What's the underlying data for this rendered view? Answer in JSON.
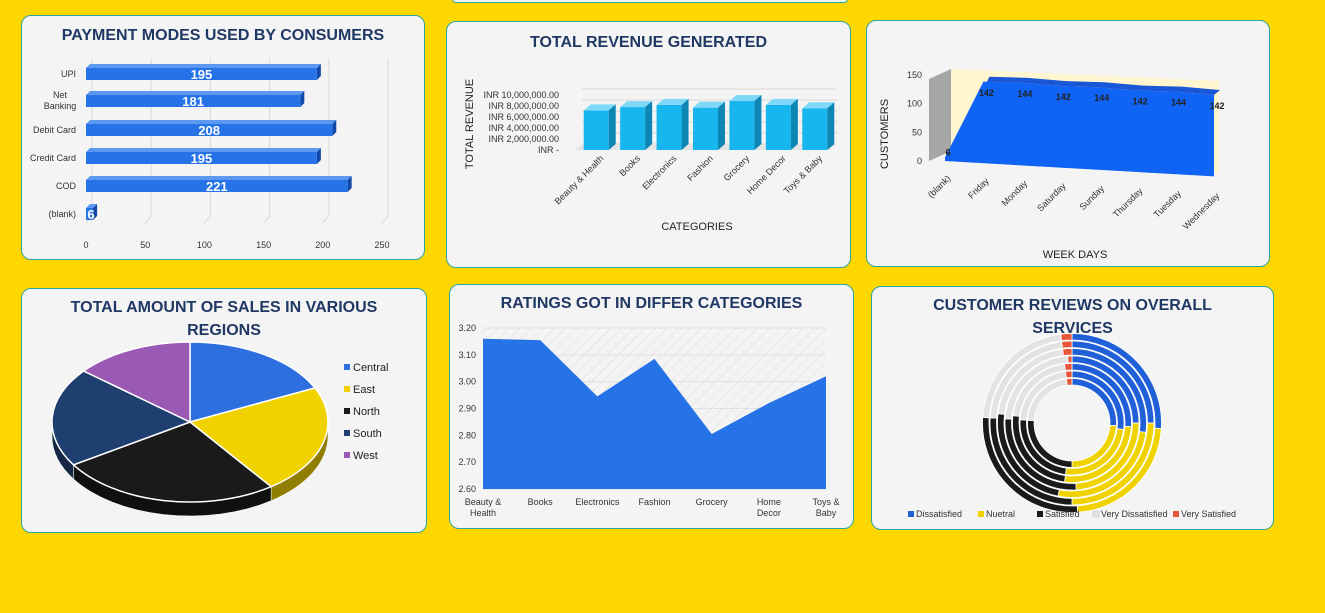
{
  "colors": {
    "background": "#FFD700",
    "panel": "#F4F4F4",
    "border": "#2BA5A0",
    "title": "#1F3864",
    "bar_blue": "#2673E8",
    "cyan": "#17B6EE"
  },
  "chart_data": [
    {
      "id": "payment",
      "type": "bar",
      "orientation": "horizontal",
      "title": "PAYMENT MODES USED BY CONSUMERS",
      "categories": [
        "UPI",
        "Net Banking",
        "Debit Card",
        "Credit Card",
        "COD",
        "(blank)"
      ],
      "values": [
        195,
        181,
        208,
        195,
        221,
        6
      ],
      "data_labels": [
        "195",
        "181",
        "208",
        "195",
        "221",
        "6"
      ],
      "xlim": [
        0,
        250
      ],
      "x_ticks": [
        "0",
        "50",
        "100",
        "150",
        "200",
        "250"
      ]
    },
    {
      "id": "revenue",
      "type": "bar",
      "title": "TOTAL REVENUE GENERATED",
      "xlabel": "CATEGORIES",
      "ylabel": "TOTAL REVENUE",
      "categories": [
        "Beauty & Health",
        "Books",
        "Electronics",
        "Fashion",
        "Grocery",
        "Home Decor",
        "Toys & Baby"
      ],
      "values": [
        7200000,
        7800000,
        8200000,
        7700000,
        8900000,
        8200000,
        7600000
      ],
      "ylim": [
        0,
        10000000
      ],
      "y_ticks": [
        "INR -",
        "INR 2,000,000.00",
        "INR 4,000,000.00",
        "INR 6,000,000.00",
        "INR 8,000,000.00",
        "INR 10,000,000.00"
      ]
    },
    {
      "id": "weekdays",
      "type": "area",
      "title": "",
      "xlabel": "WEEK DAYS",
      "ylabel": "CUSTOMERS",
      "categories": [
        "(blank)",
        "Friday",
        "Monday",
        "Saturday",
        "Sunday",
        "Thursday",
        "Tuesday",
        "Wednesday"
      ],
      "values": [
        6,
        142,
        144,
        142,
        144,
        142,
        144,
        142
      ],
      "data_labels": [
        "6",
        "142",
        "144",
        "142",
        "144",
        "142",
        "144",
        "142"
      ],
      "ylim": [
        0,
        150
      ],
      "y_ticks": [
        "0",
        "50",
        "100",
        "150"
      ]
    },
    {
      "id": "regions",
      "type": "pie",
      "title": "TOTAL AMOUNT OF SALES IN VARIOUS REGIONS",
      "categories": [
        "Central",
        "East",
        "North",
        "South",
        "West"
      ],
      "values": [
        18,
        22,
        26,
        20,
        14
      ],
      "colors": [
        "#2E6FE0",
        "#F0D200",
        "#1A1A1A",
        "#1F3F70",
        "#9B59B6"
      ],
      "legend": "right"
    },
    {
      "id": "ratings",
      "type": "area",
      "title": "RATINGS GOT IN DIFFER CATEGORIES",
      "categories": [
        "Beauty & Health",
        "Books",
        "Electronics",
        "Fashion",
        "Grocery",
        "Home Decor",
        "Toys & Baby"
      ],
      "values": [
        3.16,
        3.155,
        2.945,
        3.085,
        2.805,
        2.92,
        3.02
      ],
      "ylim": [
        2.6,
        3.2
      ],
      "y_ticks": [
        "2.60",
        "2.70",
        "2.80",
        "2.90",
        "3.00",
        "3.10",
        "3.20"
      ]
    },
    {
      "id": "reviews",
      "type": "pie",
      "subtype": "multi-ring doughnut",
      "title": "CUSTOMER REVIEWS ON OVERALL SERVICES",
      "categories": [
        "Dissatisfied",
        "Nuetral",
        "Satisfied",
        "Very Dissatisfied",
        "Very Satisfied"
      ],
      "colors": [
        "#1F5FD8",
        "#F0D200",
        "#1A1A1A",
        "#E3E3E3",
        "#E8553A"
      ],
      "ring_values": [
        [
          0.26,
          0.24,
          0.26,
          0.22,
          0.02
        ],
        [
          0.27,
          0.25,
          0.24,
          0.22,
          0.02
        ],
        [
          0.26,
          0.26,
          0.25,
          0.21,
          0.02
        ],
        [
          0.25,
          0.24,
          0.27,
          0.23,
          0.01
        ],
        [
          0.27,
          0.26,
          0.24,
          0.21,
          0.02
        ],
        [
          0.25,
          0.25,
          0.26,
          0.22,
          0.02
        ],
        [
          0.26,
          0.23,
          0.27,
          0.22,
          0.02
        ]
      ],
      "legend": "bottom"
    }
  ]
}
